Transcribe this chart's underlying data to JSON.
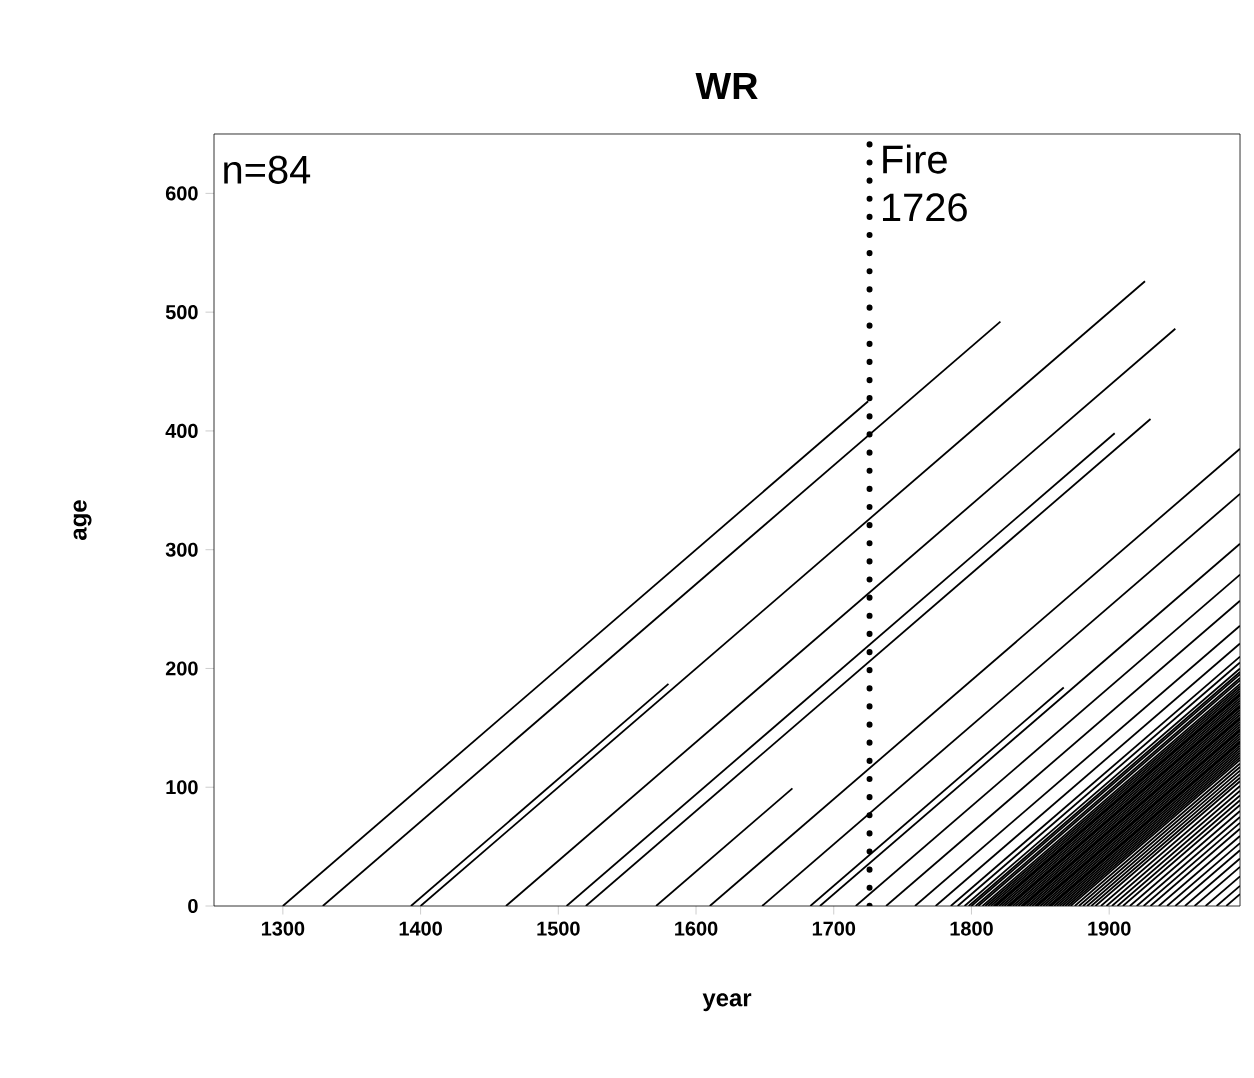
{
  "chart_data": {
    "type": "line",
    "title": "WR",
    "xlabel": "year",
    "ylabel": "age",
    "xlim": [
      1250,
      1995
    ],
    "ylim": [
      0,
      650
    ],
    "xticks": [
      1300,
      1400,
      1500,
      1600,
      1700,
      1800,
      1900
    ],
    "yticks": [
      0,
      100,
      200,
      300,
      400,
      500,
      600
    ],
    "marker": "none",
    "line_style": "solid",
    "annotations": [
      "n=84"
    ],
    "ref_lines": [
      {
        "axis": "x",
        "value": 1726,
        "label": "Fire 1726",
        "color": "#000000",
        "line_style": "dotted"
      }
    ],
    "series": [
      {
        "color": "#000000",
        "x": [
          1300,
          1725
        ],
        "values": [
          0,
          425
        ]
      },
      {
        "color": "#000000",
        "x": [
          1329,
          1821
        ],
        "values": [
          0,
          492
        ]
      },
      {
        "color": "#000000",
        "x": [
          1393,
          1580
        ],
        "values": [
          0,
          187
        ]
      },
      {
        "color": "#000000",
        "x": [
          1400,
          1926
        ],
        "values": [
          0,
          526
        ]
      },
      {
        "color": "#000000",
        "x": [
          1462,
          1948
        ],
        "values": [
          0,
          486
        ]
      },
      {
        "color": "#000000",
        "x": [
          1506,
          1904
        ],
        "values": [
          0,
          398
        ]
      },
      {
        "color": "#000000",
        "x": [
          1520,
          1930
        ],
        "values": [
          0,
          410
        ]
      },
      {
        "color": "#000000",
        "x": [
          1571,
          1670
        ],
        "values": [
          0,
          99
        ]
      },
      {
        "color": "#000000",
        "x": [
          1610,
          1995
        ],
        "values": [
          0,
          385
        ]
      },
      {
        "color": "#000000",
        "x": [
          1648,
          1995
        ],
        "values": [
          0,
          347
        ]
      },
      {
        "color": "#000000",
        "x": [
          1683,
          1867
        ],
        "values": [
          0,
          184
        ]
      },
      {
        "color": "#000000",
        "x": [
          1690,
          1995
        ],
        "values": [
          0,
          305
        ]
      },
      {
        "color": "#000000",
        "x": [
          1716,
          1995
        ],
        "values": [
          0,
          279
        ]
      },
      {
        "color": "#000000",
        "x": [
          1738,
          1995
        ],
        "values": [
          0,
          257
        ]
      },
      {
        "color": "#000000",
        "x": [
          1759,
          1995
        ],
        "values": [
          0,
          236
        ]
      },
      {
        "color": "#000000",
        "x": [
          1774,
          1995
        ],
        "values": [
          0,
          221
        ]
      },
      {
        "color": "#000000",
        "x": [
          1785,
          1995
        ],
        "values": [
          0,
          210
        ]
      },
      {
        "color": "#000000",
        "x": [
          1790,
          1995
        ],
        "values": [
          0,
          205
        ]
      },
      {
        "color": "#000000",
        "x": [
          1795,
          1995
        ],
        "values": [
          0,
          200
        ]
      },
      {
        "color": "#000000",
        "x": [
          1798,
          1995
        ],
        "values": [
          0,
          197
        ]
      },
      {
        "color": "#000000",
        "x": [
          1800,
          1995
        ],
        "values": [
          0,
          195
        ]
      },
      {
        "color": "#000000",
        "x": [
          1803,
          1995
        ],
        "values": [
          0,
          192
        ]
      },
      {
        "color": "#000000",
        "x": [
          1805,
          1995
        ],
        "values": [
          0,
          190
        ]
      },
      {
        "color": "#000000",
        "x": [
          1808,
          1995
        ],
        "values": [
          0,
          187
        ]
      },
      {
        "color": "#000000",
        "x": [
          1810,
          1995
        ],
        "values": [
          0,
          185
        ]
      },
      {
        "color": "#000000",
        "x": [
          1812,
          1995
        ],
        "values": [
          0,
          183
        ]
      },
      {
        "color": "#000000",
        "x": [
          1814,
          1995
        ],
        "values": [
          0,
          181
        ]
      },
      {
        "color": "#000000",
        "x": [
          1816,
          1995
        ],
        "values": [
          0,
          179
        ]
      },
      {
        "color": "#000000",
        "x": [
          1817,
          1995
        ],
        "values": [
          0,
          178
        ]
      },
      {
        "color": "#000000",
        "x": [
          1818,
          1995
        ],
        "values": [
          0,
          177
        ]
      },
      {
        "color": "#000000",
        "x": [
          1820,
          1995
        ],
        "values": [
          0,
          175
        ]
      },
      {
        "color": "#000000",
        "x": [
          1822,
          1995
        ],
        "values": [
          0,
          173
        ]
      },
      {
        "color": "#000000",
        "x": [
          1824,
          1995
        ],
        "values": [
          0,
          171
        ]
      },
      {
        "color": "#000000",
        "x": [
          1826,
          1995
        ],
        "values": [
          0,
          169
        ]
      },
      {
        "color": "#000000",
        "x": [
          1827,
          1995
        ],
        "values": [
          0,
          168
        ]
      },
      {
        "color": "#000000",
        "x": [
          1828,
          1995
        ],
        "values": [
          0,
          167
        ]
      },
      {
        "color": "#000000",
        "x": [
          1830,
          1995
        ],
        "values": [
          0,
          165
        ]
      },
      {
        "color": "#000000",
        "x": [
          1832,
          1995
        ],
        "values": [
          0,
          163
        ]
      },
      {
        "color": "#000000",
        "x": [
          1834,
          1995
        ],
        "values": [
          0,
          161
        ]
      },
      {
        "color": "#000000",
        "x": [
          1836,
          1995
        ],
        "values": [
          0,
          159
        ]
      },
      {
        "color": "#000000",
        "x": [
          1837,
          1995
        ],
        "values": [
          0,
          158
        ]
      },
      {
        "color": "#000000",
        "x": [
          1838,
          1995
        ],
        "values": [
          0,
          157
        ]
      },
      {
        "color": "#000000",
        "x": [
          1840,
          1995
        ],
        "values": [
          0,
          155
        ]
      },
      {
        "color": "#000000",
        "x": [
          1842,
          1995
        ],
        "values": [
          0,
          153
        ]
      },
      {
        "color": "#000000",
        "x": [
          1844,
          1995
        ],
        "values": [
          0,
          151
        ]
      },
      {
        "color": "#000000",
        "x": [
          1846,
          1995
        ],
        "values": [
          0,
          149
        ]
      },
      {
        "color": "#000000",
        "x": [
          1847,
          1995
        ],
        "values": [
          0,
          148
        ]
      },
      {
        "color": "#000000",
        "x": [
          1848,
          1995
        ],
        "values": [
          0,
          147
        ]
      },
      {
        "color": "#000000",
        "x": [
          1850,
          1995
        ],
        "values": [
          0,
          145
        ]
      },
      {
        "color": "#000000",
        "x": [
          1852,
          1995
        ],
        "values": [
          0,
          143
        ]
      },
      {
        "color": "#000000",
        "x": [
          1854,
          1995
        ],
        "values": [
          0,
          141
        ]
      },
      {
        "color": "#000000",
        "x": [
          1856,
          1995
        ],
        "values": [
          0,
          139
        ]
      },
      {
        "color": "#000000",
        "x": [
          1857,
          1995
        ],
        "values": [
          0,
          138
        ]
      },
      {
        "color": "#000000",
        "x": [
          1858,
          1995
        ],
        "values": [
          0,
          137
        ]
      },
      {
        "color": "#000000",
        "x": [
          1860,
          1995
        ],
        "values": [
          0,
          135
        ]
      },
      {
        "color": "#000000",
        "x": [
          1862,
          1995
        ],
        "values": [
          0,
          133
        ]
      },
      {
        "color": "#000000",
        "x": [
          1864,
          1995
        ],
        "values": [
          0,
          131
        ]
      },
      {
        "color": "#000000",
        "x": [
          1866,
          1995
        ],
        "values": [
          0,
          129
        ]
      },
      {
        "color": "#000000",
        "x": [
          1868,
          1995
        ],
        "values": [
          0,
          127
        ]
      },
      {
        "color": "#000000",
        "x": [
          1870,
          1995
        ],
        "values": [
          0,
          125
        ]
      },
      {
        "color": "#000000",
        "x": [
          1872,
          1995
        ],
        "values": [
          0,
          123
        ]
      },
      {
        "color": "#000000",
        "x": [
          1875,
          1995
        ],
        "values": [
          0,
          120
        ]
      },
      {
        "color": "#000000",
        "x": [
          1878,
          1995
        ],
        "values": [
          0,
          117
        ]
      },
      {
        "color": "#000000",
        "x": [
          1881,
          1995
        ],
        "values": [
          0,
          114
        ]
      },
      {
        "color": "#000000",
        "x": [
          1884,
          1995
        ],
        "values": [
          0,
          111
        ]
      },
      {
        "color": "#000000",
        "x": [
          1887,
          1995
        ],
        "values": [
          0,
          108
        ]
      },
      {
        "color": "#000000",
        "x": [
          1890,
          1995
        ],
        "values": [
          0,
          105
        ]
      },
      {
        "color": "#000000",
        "x": [
          1894,
          1995
        ],
        "values": [
          0,
          101
        ]
      },
      {
        "color": "#000000",
        "x": [
          1898,
          1995
        ],
        "values": [
          0,
          97
        ]
      },
      {
        "color": "#000000",
        "x": [
          1902,
          1995
        ],
        "values": [
          0,
          93
        ]
      },
      {
        "color": "#000000",
        "x": [
          1906,
          1995
        ],
        "values": [
          0,
          89
        ]
      },
      {
        "color": "#000000",
        "x": [
          1910,
          1995
        ],
        "values": [
          0,
          85
        ]
      },
      {
        "color": "#000000",
        "x": [
          1915,
          1995
        ],
        "values": [
          0,
          80
        ]
      },
      {
        "color": "#000000",
        "x": [
          1920,
          1995
        ],
        "values": [
          0,
          75
        ]
      },
      {
        "color": "#000000",
        "x": [
          1925,
          1995
        ],
        "values": [
          0,
          70
        ]
      },
      {
        "color": "#000000",
        "x": [
          1930,
          1995
        ],
        "values": [
          0,
          65
        ]
      },
      {
        "color": "#000000",
        "x": [
          1936,
          1995
        ],
        "values": [
          0,
          59
        ]
      },
      {
        "color": "#000000",
        "x": [
          1942,
          1995
        ],
        "values": [
          0,
          53
        ]
      },
      {
        "color": "#000000",
        "x": [
          1948,
          1995
        ],
        "values": [
          0,
          47
        ]
      },
      {
        "color": "#000000",
        "x": [
          1955,
          1995
        ],
        "values": [
          0,
          40
        ]
      },
      {
        "color": "#000000",
        "x": [
          1962,
          1995
        ],
        "values": [
          0,
          33
        ]
      },
      {
        "color": "#000000",
        "x": [
          1970,
          1995
        ],
        "values": [
          0,
          25
        ]
      },
      {
        "color": "#000000",
        "x": [
          1978,
          1995
        ],
        "values": [
          0,
          17
        ]
      },
      {
        "color": "#000000",
        "x": [
          1985,
          1995
        ],
        "values": [
          0,
          10
        ]
      }
    ]
  }
}
